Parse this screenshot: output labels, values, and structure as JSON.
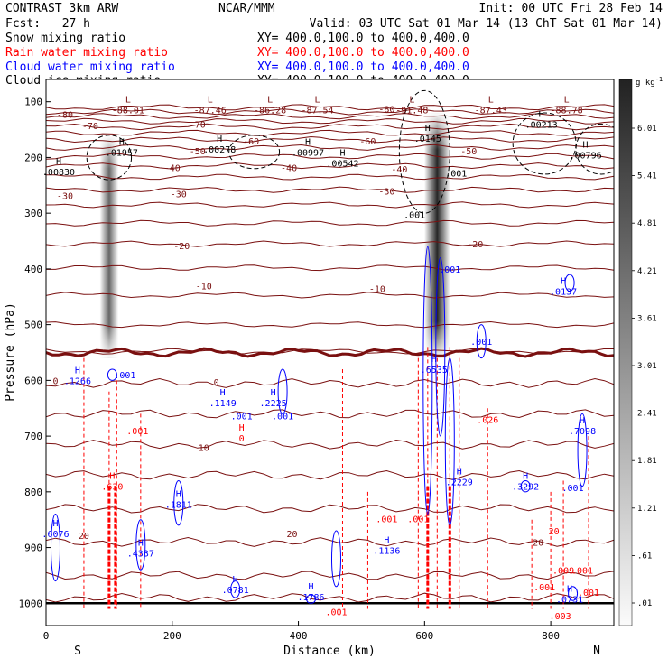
{
  "header": {
    "title": "CONTRAST  3km ARW",
    "center": "NCAR/MMM",
    "init": "Init: 00 UTC Fri 28 Feb 14",
    "fcst_label": "Fcst:",
    "fcst_value": "27 h",
    "valid": "Valid: 03 UTC Sat 01 Mar 14 (13 ChT Sat 01 Mar 14)"
  },
  "legend": [
    {
      "name": "Snow mixing ratio",
      "color": "#000000",
      "xy": "XY= 400.0,100.0 to 400.0,400.0"
    },
    {
      "name": "Rain water mixing ratio",
      "color": "#ff0000",
      "xy": "XY= 400.0,100.0 to 400.0,400.0"
    },
    {
      "name": "Cloud water mixing ratio",
      "color": "#0000ff",
      "xy": "XY= 400.0,100.0 to 400.0,400.0"
    },
    {
      "name": "Cloud ice mixing ratio",
      "color": "#000000",
      "xy": "XY= 400.0,100.0 to 400.0,400.0"
    }
  ],
  "chart_data": {
    "type": "cross-section",
    "xlabel": "Distance (km)",
    "ylabel": "Pressure (hPa)",
    "xlim": [
      0,
      900
    ],
    "ylim": [
      1040,
      60
    ],
    "x_ticks": [
      0,
      200,
      400,
      600,
      800
    ],
    "y_ticks": [
      100,
      200,
      300,
      400,
      500,
      600,
      700,
      800,
      900,
      1000
    ],
    "endpoint_left": "S",
    "endpoint_right": "N",
    "colorbar": {
      "unit": "g kg",
      "unit_exp": "-1",
      "ticks": [
        "6.01",
        "5.41",
        "4.81",
        "4.21",
        "3.61",
        "3.01",
        "2.41",
        "1.81",
        "1.21",
        ".61",
        ".01"
      ]
    },
    "temperature_labels": [
      {
        "text": "-80",
        "x": 30,
        "p": 122
      },
      {
        "text": "-70",
        "x": 70,
        "p": 143
      },
      {
        "text": "-70",
        "x": 240,
        "p": 140
      },
      {
        "text": "-80",
        "x": 540,
        "p": 113
      },
      {
        "text": "-60",
        "x": 325,
        "p": 170
      },
      {
        "text": "-60",
        "x": 510,
        "p": 170
      },
      {
        "text": "-50",
        "x": 240,
        "p": 188
      },
      {
        "text": "-50",
        "x": 670,
        "p": 188
      },
      {
        "text": "-40",
        "x": 200,
        "p": 218
      },
      {
        "text": "-40",
        "x": 385,
        "p": 218
      },
      {
        "text": "-40",
        "x": 560,
        "p": 220
      },
      {
        "text": "-30",
        "x": 30,
        "p": 268
      },
      {
        "text": "-30",
        "x": 210,
        "p": 265
      },
      {
        "text": "-30",
        "x": 540,
        "p": 260
      },
      {
        "text": "-20",
        "x": 215,
        "p": 358
      },
      {
        "text": "-20",
        "x": 680,
        "p": 355
      },
      {
        "text": "-10",
        "x": 250,
        "p": 430
      },
      {
        "text": "-10",
        "x": 525,
        "p": 435
      },
      {
        "text": "0",
        "x": 15,
        "p": 600
      },
      {
        "text": "0",
        "x": 270,
        "p": 603
      },
      {
        "text": "10",
        "x": 250,
        "p": 720
      },
      {
        "text": "20",
        "x": 60,
        "p": 878
      },
      {
        "text": "20",
        "x": 390,
        "p": 875
      },
      {
        "text": "20",
        "x": 780,
        "p": 890
      }
    ],
    "high_labels": [
      {
        "letter": "H",
        "value": ".00830",
        "x": 20,
        "p": 225,
        "color": "#000000"
      },
      {
        "letter": "H",
        "value": ".01957",
        "x": 120,
        "p": 190,
        "color": "#000000"
      },
      {
        "letter": "H",
        "value": ".00278",
        "x": 275,
        "p": 185,
        "color": "#000000"
      },
      {
        "letter": "H",
        "value": ".00997",
        "x": 415,
        "p": 190,
        "color": "#000000"
      },
      {
        "letter": "H",
        "value": ".00542",
        "x": 470,
        "p": 210,
        "color": "#000000"
      },
      {
        "letter": "H",
        "value": ".0145",
        "x": 605,
        "p": 165,
        "color": "#000000"
      },
      {
        "letter": "H",
        "value": ".00213",
        "x": 785,
        "p": 140,
        "color": "#000000"
      },
      {
        "letter": "H",
        "value": ".00796",
        "x": 855,
        "p": 195,
        "color": "#000000"
      },
      {
        "letter": "H",
        "value": ".1266",
        "x": 50,
        "p": 600,
        "color": "#0000ff"
      },
      {
        "letter": "H",
        "value": ".1149",
        "x": 280,
        "p": 640,
        "color": "#0000ff"
      },
      {
        "letter": "H",
        "value": ".2225",
        "x": 360,
        "p": 640,
        "color": "#0000ff"
      },
      {
        "letter": "H",
        "value": ".1811",
        "x": 210,
        "p": 822,
        "color": "#0000ff"
      },
      {
        "letter": "H",
        "value": ".4337",
        "x": 150,
        "p": 910,
        "color": "#0000ff"
      },
      {
        "letter": "H",
        "value": ".0781",
        "x": 300,
        "p": 975,
        "color": "#0000ff"
      },
      {
        "letter": "H",
        "value": ".1786",
        "x": 420,
        "p": 988,
        "color": "#0000ff"
      },
      {
        "letter": "H",
        "value": ".1136",
        "x": 540,
        "p": 905,
        "color": "#0000ff"
      },
      {
        "letter": "H",
        "value": ".6535",
        "x": 615,
        "p": 580,
        "color": "#0000ff"
      },
      {
        "letter": "H",
        "value": ".2229",
        "x": 655,
        "p": 782,
        "color": "#0000ff"
      },
      {
        "letter": "H",
        "value": ".3292",
        "x": 760,
        "p": 790,
        "color": "#0000ff"
      },
      {
        "letter": "H",
        "value": ".7098",
        "x": 850,
        "p": 690,
        "color": "#0000ff"
      },
      {
        "letter": "H",
        "value": ".0137",
        "x": 820,
        "p": 440,
        "color": "#0000ff"
      },
      {
        "letter": "H",
        "value": ".0731",
        "x": 830,
        "p": 992,
        "color": "#0000ff"
      },
      {
        "letter": "H",
        "value": ".6076",
        "x": 15,
        "p": 875,
        "color": "#0000ff"
      },
      {
        "letter": "H",
        "value": ".630",
        "x": 105,
        "p": 790,
        "color": "#ff0000"
      },
      {
        "letter": "H",
        "value": "0",
        "x": 310,
        "p": 703,
        "color": "#ff0000"
      }
    ],
    "low_labels": [
      {
        "letter": "L",
        "value": "-88.01",
        "x": 130,
        "p": 108
      },
      {
        "letter": "L",
        "value": "-87.46",
        "x": 260,
        "p": 108
      },
      {
        "letter": "L",
        "value": "-86.28",
        "x": 355,
        "p": 108
      },
      {
        "letter": "L",
        "value": "-87.54",
        "x": 430,
        "p": 108
      },
      {
        "letter": "L",
        "value": "-91.48",
        "x": 580,
        "p": 108
      },
      {
        "letter": "L",
        "value": "-87.43",
        "x": 705,
        "p": 108
      },
      {
        "letter": "L",
        "value": "-88.78",
        "x": 825,
        "p": 108
      }
    ],
    "contour_value_labels": [
      {
        "text": ".001",
        "x": 125,
        "p": 590,
        "color": "#0000ff"
      },
      {
        "text": ".001",
        "x": 310,
        "p": 663,
        "color": "#0000ff"
      },
      {
        "text": ".001",
        "x": 375,
        "p": 663,
        "color": "#0000ff"
      },
      {
        "text": ".001",
        "x": 640,
        "p": 400,
        "color": "#0000ff"
      },
      {
        "text": ".001",
        "x": 690,
        "p": 530,
        "color": "#0000ff"
      },
      {
        "text": ".001",
        "x": 835,
        "p": 792,
        "color": "#0000ff"
      },
      {
        "text": ".001",
        "x": 584,
        "p": 302,
        "color": "#000000"
      },
      {
        "text": ".001",
        "x": 650,
        "p": 228,
        "color": "#000000"
      },
      {
        "text": ".001",
        "x": 145,
        "p": 690,
        "color": "#ff0000"
      },
      {
        "text": ".026",
        "x": 700,
        "p": 670,
        "color": "#ff0000"
      },
      {
        "text": ".001",
        "x": 540,
        "p": 848,
        "color": "#ff0000"
      },
      {
        "text": ".001",
        "x": 590,
        "p": 848,
        "color": "#ff0000"
      },
      {
        "text": ".001",
        "x": 790,
        "p": 970,
        "color": "#ff0000"
      },
      {
        "text": ".001",
        "x": 850,
        "p": 940,
        "color": "#ff0000"
      },
      {
        "text": ".001",
        "x": 860,
        "p": 980,
        "color": "#ff0000"
      },
      {
        "text": ".001",
        "x": 460,
        "p": 1015,
        "color": "#ff0000"
      },
      {
        "text": ".003",
        "x": 815,
        "p": 1022,
        "color": "#ff0000"
      },
      {
        "text": ".009",
        "x": 820,
        "p": 940,
        "color": "#ff0000"
      },
      {
        "text": "20",
        "x": 805,
        "p": 870,
        "color": "#ff0000"
      }
    ],
    "snow_shafts": [
      {
        "x": 100,
        "p_top": 160,
        "p_bottom": 560,
        "max": 3.5
      },
      {
        "x": 620,
        "p_top": 120,
        "p_bottom": 560,
        "max": 6.2
      }
    ]
  }
}
